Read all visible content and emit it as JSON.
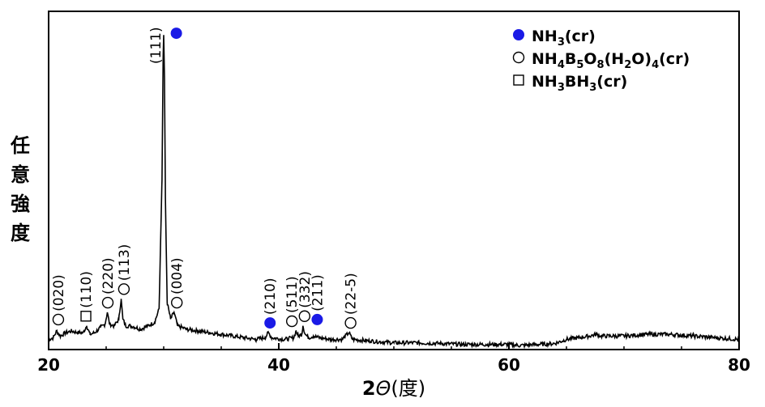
{
  "chart_data": {
    "type": "line",
    "xlabel": "2Θ(度)",
    "xlabel_prefix": "2",
    "xlabel_theta": "Θ",
    "xlabel_suffix": "(度)",
    "ylabel": "任意強度",
    "ylabel_chars": [
      "任",
      "意",
      "強",
      "度"
    ],
    "xlim": [
      20,
      80
    ],
    "xticks": [
      20,
      40,
      60,
      80
    ],
    "yticks_shown": false,
    "grid": false,
    "line_color": "#000000",
    "profile_points": [
      [
        20,
        0.03
      ],
      [
        20.4,
        0.035
      ],
      [
        20.7,
        0.055
      ],
      [
        21.0,
        0.04
      ],
      [
        21.5,
        0.05
      ],
      [
        22,
        0.055
      ],
      [
        22.5,
        0.05
      ],
      [
        23.0,
        0.05
      ],
      [
        23.3,
        0.07
      ],
      [
        23.6,
        0.045
      ],
      [
        24,
        0.05
      ],
      [
        24.5,
        0.065
      ],
      [
        24.9,
        0.075
      ],
      [
        25.1,
        0.11
      ],
      [
        25.3,
        0.075
      ],
      [
        25.7,
        0.07
      ],
      [
        26.1,
        0.09
      ],
      [
        26.3,
        0.15
      ],
      [
        26.45,
        0.09
      ],
      [
        26.7,
        0.07
      ],
      [
        27.2,
        0.07
      ],
      [
        28,
        0.06
      ],
      [
        28.6,
        0.07
      ],
      [
        29.2,
        0.08
      ],
      [
        29.6,
        0.12
      ],
      [
        29.85,
        0.5
      ],
      [
        29.95,
        0.86
      ],
      [
        30.0,
        0.93
      ],
      [
        30.07,
        0.8
      ],
      [
        30.15,
        0.45
      ],
      [
        30.3,
        0.14
      ],
      [
        30.6,
        0.09
      ],
      [
        30.9,
        0.11
      ],
      [
        31.2,
        0.07
      ],
      [
        32,
        0.06
      ],
      [
        33,
        0.055
      ],
      [
        34,
        0.05
      ],
      [
        35,
        0.045
      ],
      [
        36,
        0.04
      ],
      [
        37,
        0.035
      ],
      [
        38,
        0.03
      ],
      [
        38.8,
        0.035
      ],
      [
        39.1,
        0.05
      ],
      [
        39.4,
        0.035
      ],
      [
        40.5,
        0.03
      ],
      [
        41.3,
        0.035
      ],
      [
        41.5,
        0.055
      ],
      [
        41.7,
        0.04
      ],
      [
        42.0,
        0.045
      ],
      [
        42.1,
        0.07
      ],
      [
        42.3,
        0.045
      ],
      [
        42.6,
        0.035
      ],
      [
        43.0,
        0.04
      ],
      [
        43.5,
        0.035
      ],
      [
        44.5,
        0.03
      ],
      [
        45.5,
        0.03
      ],
      [
        46.1,
        0.05
      ],
      [
        46.4,
        0.03
      ],
      [
        48,
        0.025
      ],
      [
        50,
        0.02
      ],
      [
        52,
        0.02
      ],
      [
        54,
        0.018
      ],
      [
        56,
        0.015
      ],
      [
        58,
        0.015
      ],
      [
        60,
        0.015
      ],
      [
        61,
        0.012
      ],
      [
        62,
        0.014
      ],
      [
        64,
        0.018
      ],
      [
        65,
        0.03
      ],
      [
        66,
        0.035
      ],
      [
        67,
        0.04
      ],
      [
        67.6,
        0.045
      ],
      [
        68,
        0.04
      ],
      [
        70,
        0.04
      ],
      [
        72,
        0.045
      ],
      [
        74,
        0.045
      ],
      [
        76,
        0.04
      ],
      [
        78,
        0.035
      ],
      [
        80,
        0.03
      ]
    ],
    "annotations": [
      {
        "label": "(111)",
        "x": 30.0,
        "y": 0.94,
        "marker": "filled-circle",
        "vertical": true,
        "marker_x": 31.1
      },
      {
        "label": "(020)",
        "x": 20.7,
        "y": 0.06,
        "marker": "open-circle",
        "vertical": true
      },
      {
        "label": "(110)",
        "x": 23.1,
        "y": 0.07,
        "marker": "open-square",
        "vertical": true
      },
      {
        "label": "(220)",
        "x": 25.0,
        "y": 0.11,
        "marker": "open-circle",
        "vertical": true
      },
      {
        "label": "(113)",
        "x": 26.4,
        "y": 0.15,
        "marker": "open-circle",
        "vertical": true
      },
      {
        "label": "(004)",
        "x": 31.0,
        "y": 0.11,
        "marker": "open-circle",
        "vertical": true
      },
      {
        "label": "(210)",
        "x": 39.1,
        "y": 0.05,
        "marker": "filled-circle",
        "vertical": true
      },
      {
        "label": "(511)",
        "x": 41.0,
        "y": 0.055,
        "marker": "open-circle",
        "vertical": true
      },
      {
        "label": "(332)",
        "x": 42.1,
        "y": 0.07,
        "marker": "open-circle",
        "vertical": true
      },
      {
        "label": "(211)",
        "x": 43.2,
        "y": 0.06,
        "marker": "filled-circle",
        "vertical": true
      },
      {
        "label": "(22-5)",
        "x": 46.1,
        "y": 0.05,
        "marker": "open-circle",
        "vertical": true
      }
    ],
    "legend": {
      "placement": "top-right",
      "entries": [
        {
          "marker": "filled-circle",
          "parts": [
            [
              "NH",
              ""
            ],
            [
              "3",
              "sub"
            ],
            [
              "(cr)",
              ""
            ]
          ]
        },
        {
          "marker": "open-circle",
          "parts": [
            [
              "NH",
              ""
            ],
            [
              "4",
              "sub"
            ],
            [
              "B",
              ""
            ],
            [
              "5",
              "sub"
            ],
            [
              "O",
              ""
            ],
            [
              "8",
              "sub"
            ],
            [
              "(H",
              ""
            ],
            [
              "2",
              "sub"
            ],
            [
              "O)",
              ""
            ],
            [
              "4",
              "sub"
            ],
            [
              "(cr)",
              ""
            ]
          ]
        },
        {
          "marker": "open-square",
          "parts": [
            [
              "NH",
              ""
            ],
            [
              "3",
              "sub"
            ],
            [
              "BH",
              ""
            ],
            [
              "3",
              "sub"
            ],
            [
              "(cr)",
              ""
            ]
          ]
        }
      ]
    },
    "colors": {
      "filled_marker": "#1a1ae6",
      "line": "#000000",
      "axes": "#000000"
    }
  }
}
